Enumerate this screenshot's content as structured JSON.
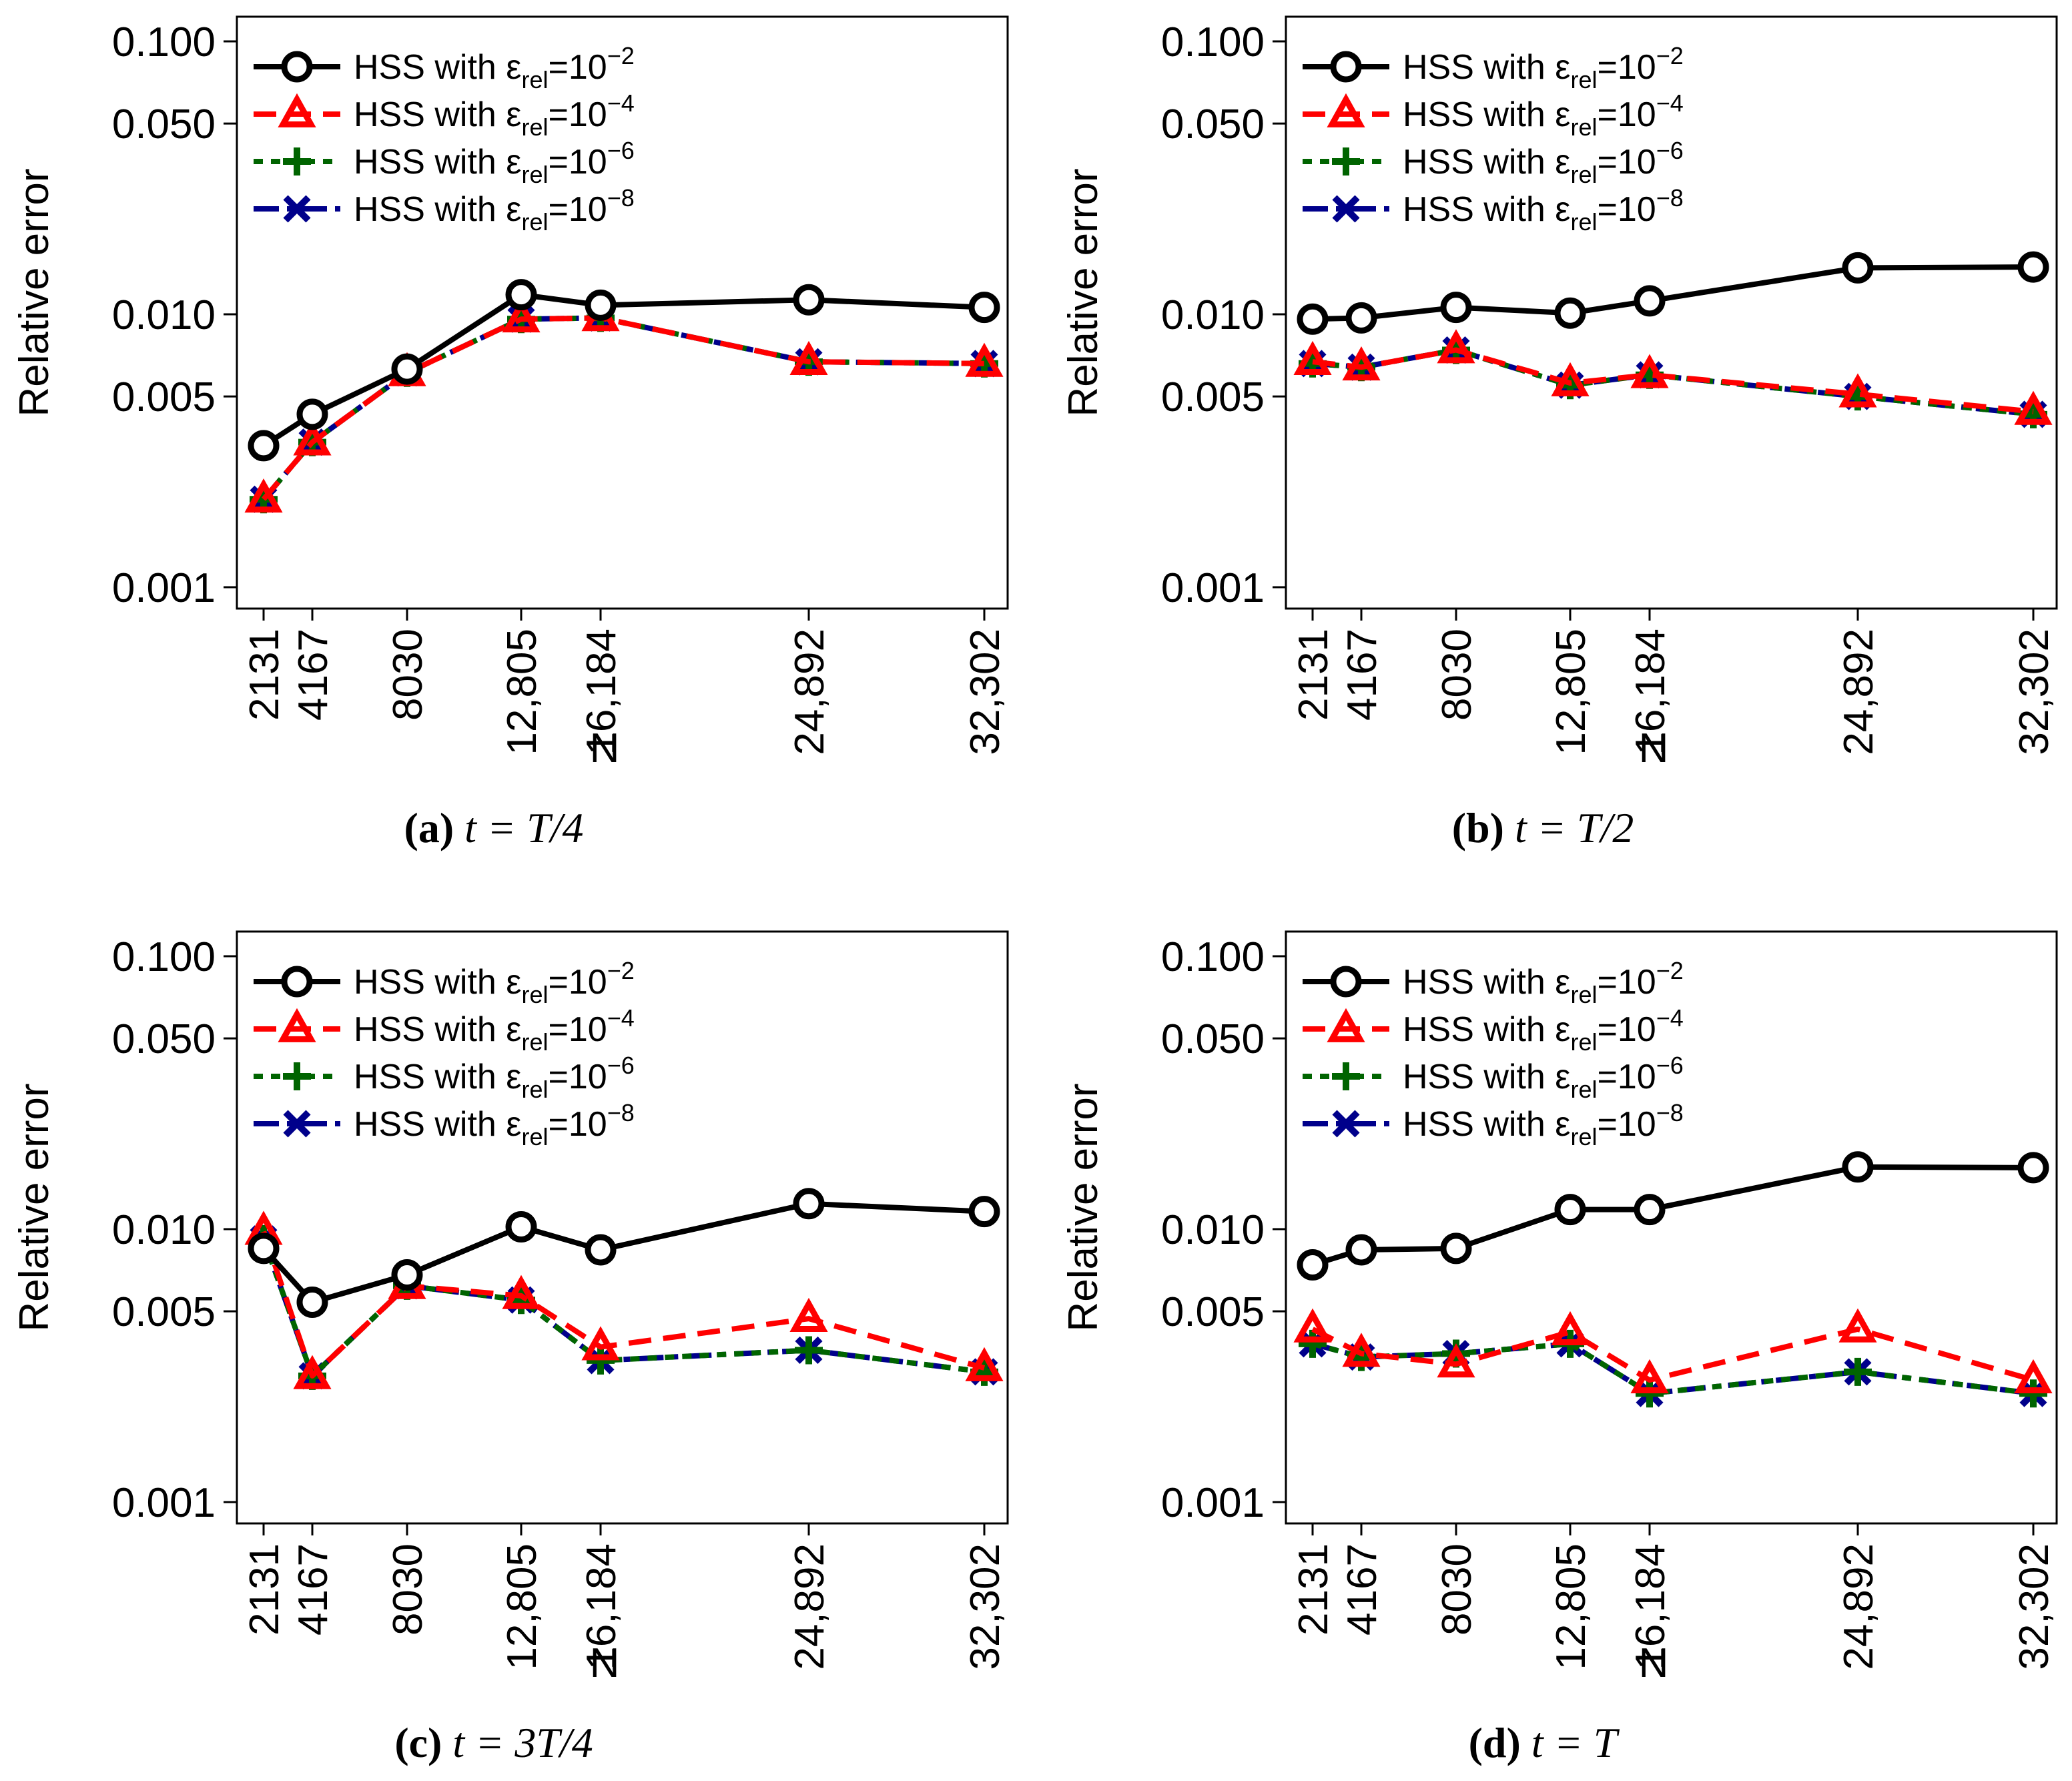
{
  "colors": {
    "black_series": "#000000",
    "red_series": "#ff0000",
    "green_series": "#006400",
    "blue_series": "#00008b",
    "frame": "#000000",
    "background": "#ffffff"
  },
  "chart_data": [
    {
      "type": "line",
      "panel": "a",
      "caption": {
        "letter": "(a)",
        "math": "t = T/4"
      },
      "xlabel": "N",
      "ylabel": "Relative error",
      "yscale": "log",
      "ylim": [
        0.001,
        0.1
      ],
      "yticks": [
        "0.100",
        "0.050",
        "0.010",
        "0.005",
        "0.001"
      ],
      "ytick_values": [
        0.1,
        0.05,
        0.01,
        0.005,
        0.001
      ],
      "x": [
        2131,
        4167,
        8030,
        12805,
        16184,
        24892,
        32302
      ],
      "xtick_labels": [
        "2131",
        "4167",
        "8030",
        "12,805",
        "16,184",
        "24,892",
        "32,302"
      ],
      "legend_position": "top-left",
      "series": [
        {
          "name": "HSS with ε",
          "sub": "rel",
          "eq": "=10",
          "exp": "−2",
          "color": "#000000",
          "marker": "circle",
          "dash": "solid",
          "values": [
            0.0033,
            0.0043,
            0.0063,
            0.0118,
            0.0108,
            0.0113,
            0.0106
          ]
        },
        {
          "name": "HSS with ε",
          "sub": "rel",
          "eq": "=10",
          "exp": "−4",
          "color": "#ff0000",
          "marker": "triangle",
          "dash": "long",
          "values": [
            0.0021,
            0.0034,
            0.0061,
            0.0096,
            0.0097,
            0.0067,
            0.0066
          ]
        },
        {
          "name": "HSS with ε",
          "sub": "rel",
          "eq": "=10",
          "exp": "−6",
          "color": "#006400",
          "marker": "plus",
          "dash": "short",
          "values": [
            0.0021,
            0.0034,
            0.0061,
            0.0096,
            0.0097,
            0.0067,
            0.0066
          ]
        },
        {
          "name": "HSS with ε",
          "sub": "rel",
          "eq": "=10",
          "exp": "−8",
          "color": "#00008b",
          "marker": "x",
          "dash": "dashdot",
          "values": [
            0.0021,
            0.0034,
            0.0061,
            0.0096,
            0.0097,
            0.0067,
            0.0066
          ]
        }
      ]
    },
    {
      "type": "line",
      "panel": "b",
      "caption": {
        "letter": "(b)",
        "math": "t = T/2"
      },
      "xlabel": "N",
      "ylabel": "Relative error",
      "yscale": "log",
      "ylim": [
        0.001,
        0.1
      ],
      "yticks": [
        "0.100",
        "0.050",
        "0.010",
        "0.005",
        "0.001"
      ],
      "ytick_values": [
        0.1,
        0.05,
        0.01,
        0.005,
        0.001
      ],
      "x": [
        2131,
        4167,
        8030,
        12805,
        16184,
        24892,
        32302
      ],
      "xtick_labels": [
        "2131",
        "4167",
        "8030",
        "12,805",
        "16,184",
        "24,892",
        "32,302"
      ],
      "legend_position": "top-left",
      "series": [
        {
          "name": "HSS with ε",
          "sub": "rel",
          "eq": "=10",
          "exp": "−2",
          "color": "#000000",
          "marker": "circle",
          "dash": "solid",
          "values": [
            0.0096,
            0.0097,
            0.0106,
            0.0101,
            0.0112,
            0.0148,
            0.0149
          ]
        },
        {
          "name": "HSS with ε",
          "sub": "rel",
          "eq": "=10",
          "exp": "−4",
          "color": "#ff0000",
          "marker": "triangle",
          "dash": "long",
          "values": [
            0.0067,
            0.0064,
            0.0074,
            0.0056,
            0.006,
            0.0051,
            0.0044
          ]
        },
        {
          "name": "HSS with ε",
          "sub": "rel",
          "eq": "=10",
          "exp": "−6",
          "color": "#006400",
          "marker": "plus",
          "dash": "short",
          "values": [
            0.0066,
            0.0064,
            0.0074,
            0.0055,
            0.006,
            0.005,
            0.0043
          ]
        },
        {
          "name": "HSS with ε",
          "sub": "rel",
          "eq": "=10",
          "exp": "−8",
          "color": "#00008b",
          "marker": "x",
          "dash": "dashdot",
          "values": [
            0.0066,
            0.0064,
            0.0074,
            0.0055,
            0.006,
            0.005,
            0.0043
          ]
        }
      ]
    },
    {
      "type": "line",
      "panel": "c",
      "caption": {
        "letter": "(c)",
        "math": "t = 3T/4"
      },
      "xlabel": "N",
      "ylabel": "Relative error",
      "yscale": "log",
      "ylim": [
        0.001,
        0.1
      ],
      "yticks": [
        "0.100",
        "0.050",
        "0.010",
        "0.005",
        "0.001"
      ],
      "ytick_values": [
        0.1,
        0.05,
        0.01,
        0.005,
        0.001
      ],
      "x": [
        2131,
        4167,
        8030,
        12805,
        16184,
        24892,
        32302
      ],
      "xtick_labels": [
        "2131",
        "4167",
        "8030",
        "12,805",
        "16,184",
        "24,892",
        "32,302"
      ],
      "legend_position": "top-left",
      "series": [
        {
          "name": "HSS with ε",
          "sub": "rel",
          "eq": "=10",
          "exp": "−2",
          "color": "#000000",
          "marker": "circle",
          "dash": "solid",
          "values": [
            0.0085,
            0.0054,
            0.0068,
            0.0102,
            0.0084,
            0.0124,
            0.0116
          ]
        },
        {
          "name": "HSS with ε",
          "sub": "rel",
          "eq": "=10",
          "exp": "−4",
          "color": "#ff0000",
          "marker": "triangle",
          "dash": "long",
          "values": [
            0.0098,
            0.0029,
            0.0062,
            0.0057,
            0.0037,
            0.0047,
            0.0031
          ]
        },
        {
          "name": "HSS with ε",
          "sub": "rel",
          "eq": "=10",
          "exp": "−6",
          "color": "#006400",
          "marker": "plus",
          "dash": "short",
          "values": [
            0.0092,
            0.0029,
            0.0062,
            0.0055,
            0.0033,
            0.0036,
            0.003
          ]
        },
        {
          "name": "HSS with ε",
          "sub": "rel",
          "eq": "=10",
          "exp": "−8",
          "color": "#00008b",
          "marker": "x",
          "dash": "dashdot",
          "values": [
            0.0092,
            0.0029,
            0.0062,
            0.0055,
            0.0033,
            0.0036,
            0.003
          ]
        }
      ]
    },
    {
      "type": "line",
      "panel": "d",
      "caption": {
        "letter": "(d)",
        "math": "t = T"
      },
      "xlabel": "N",
      "ylabel": "Relative error",
      "yscale": "log",
      "ylim": [
        0.001,
        0.1
      ],
      "yticks": [
        "0.100",
        "0.050",
        "0.010",
        "0.005",
        "0.001"
      ],
      "ytick_values": [
        0.1,
        0.05,
        0.01,
        0.005,
        0.001
      ],
      "x": [
        2131,
        4167,
        8030,
        12805,
        16184,
        24892,
        32302
      ],
      "xtick_labels": [
        "2131",
        "4167",
        "8030",
        "12,805",
        "16,184",
        "24,892",
        "32,302"
      ],
      "legend_position": "top-left",
      "series": [
        {
          "name": "HSS with ε",
          "sub": "rel",
          "eq": "=10",
          "exp": "−2",
          "color": "#000000",
          "marker": "circle",
          "dash": "solid",
          "values": [
            0.0074,
            0.0084,
            0.0085,
            0.0118,
            0.0118,
            0.0169,
            0.0168
          ]
        },
        {
          "name": "HSS with ε",
          "sub": "rel",
          "eq": "=10",
          "exp": "−4",
          "color": "#ff0000",
          "marker": "triangle",
          "dash": "long",
          "values": [
            0.0043,
            0.0035,
            0.0032,
            0.0042,
            0.0028,
            0.0043,
            0.0028
          ]
        },
        {
          "name": "HSS with ε",
          "sub": "rel",
          "eq": "=10",
          "exp": "−6",
          "color": "#006400",
          "marker": "plus",
          "dash": "short",
          "values": [
            0.0038,
            0.0034,
            0.0035,
            0.0038,
            0.0025,
            0.003,
            0.0025
          ]
        },
        {
          "name": "HSS with ε",
          "sub": "rel",
          "eq": "=10",
          "exp": "−8",
          "color": "#00008b",
          "marker": "x",
          "dash": "dashdot",
          "values": [
            0.0038,
            0.0034,
            0.0035,
            0.0038,
            0.0025,
            0.003,
            0.0025
          ]
        }
      ]
    }
  ]
}
